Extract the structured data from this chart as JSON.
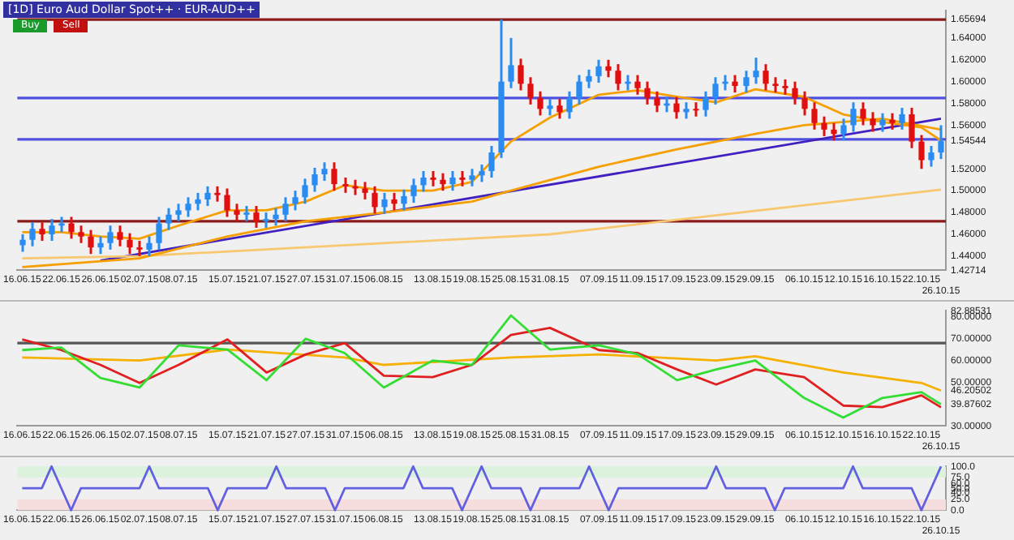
{
  "chart_data": [
    {
      "type": "candlestick",
      "title": "[1D] Euro Aud Dollar Spot++ · EUR-AUD++",
      "annotations": [
        "Buy",
        "Sell"
      ],
      "categories": [
        "16.06.15",
        null,
        null,
        null,
        "22.06.15",
        null,
        null,
        null,
        "26.06.15",
        null,
        null,
        null,
        "02.07.15",
        null,
        null,
        null,
        "08.07.15",
        null,
        null,
        null,
        null,
        "15.07.15",
        null,
        null,
        null,
        "21.07.15",
        null,
        null,
        null,
        "27.07.15",
        null,
        null,
        null,
        "31.07.15",
        null,
        null,
        null,
        "06.08.15",
        null,
        null,
        null,
        null,
        "13.08.15",
        null,
        null,
        null,
        "19.08.15",
        null,
        null,
        null,
        "25.08.15",
        null,
        null,
        null,
        "31.08.15",
        null,
        null,
        null,
        null,
        "07.09.15",
        null,
        null,
        null,
        "11.09.15",
        null,
        null,
        null,
        "17.09.15",
        null,
        null,
        null,
        "23.09.15",
        null,
        null,
        null,
        "29.09.15",
        null,
        null,
        null,
        null,
        "06.10.15",
        null,
        null,
        null,
        "12.10.15",
        null,
        null,
        null,
        "16.10.15",
        null,
        null,
        null,
        "22.10.15",
        null,
        "26.10.15"
      ],
      "ohlc": [
        [
          1.45,
          1.46,
          1.444,
          1.455
        ],
        [
          1.455,
          1.471,
          1.449,
          1.465
        ],
        [
          1.465,
          1.471,
          1.454,
          1.46
        ],
        [
          1.46,
          1.474,
          1.454,
          1.468
        ],
        [
          1.468,
          1.476,
          1.462,
          1.47
        ],
        [
          1.47,
          1.476,
          1.456,
          1.462
        ],
        [
          1.462,
          1.468,
          1.452,
          1.458
        ],
        [
          1.458,
          1.464,
          1.442,
          1.448
        ],
        [
          1.448,
          1.458,
          1.442,
          1.452
        ],
        [
          1.452,
          1.468,
          1.446,
          1.462
        ],
        [
          1.462,
          1.468,
          1.449,
          1.455
        ],
        [
          1.455,
          1.461,
          1.442,
          1.448
        ],
        [
          1.448,
          1.454,
          1.44,
          1.446
        ],
        [
          1.446,
          1.458,
          1.44,
          1.452
        ],
        [
          1.452,
          1.476,
          1.446,
          1.47
        ],
        [
          1.47,
          1.484,
          1.464,
          1.478
        ],
        [
          1.478,
          1.488,
          1.472,
          1.482
        ],
        [
          1.482,
          1.494,
          1.476,
          1.488
        ],
        [
          1.488,
          1.498,
          1.482,
          1.492
        ],
        [
          1.492,
          1.504,
          1.486,
          1.498
        ],
        [
          1.498,
          1.504,
          1.49,
          1.496
        ],
        [
          1.496,
          1.502,
          1.476,
          1.482
        ],
        [
          1.482,
          1.488,
          1.472,
          1.478
        ],
        [
          1.478,
          1.486,
          1.472,
          1.48
        ],
        [
          1.48,
          1.486,
          1.466,
          1.472
        ],
        [
          1.472,
          1.48,
          1.466,
          1.474
        ],
        [
          1.474,
          1.484,
          1.468,
          1.478
        ],
        [
          1.478,
          1.494,
          1.472,
          1.488
        ],
        [
          1.488,
          1.5,
          1.482,
          1.494
        ],
        [
          1.494,
          1.511,
          1.488,
          1.505
        ],
        [
          1.505,
          1.521,
          1.499,
          1.515
        ],
        [
          1.515,
          1.526,
          1.509,
          1.52
        ],
        [
          1.52,
          1.526,
          1.5,
          1.506
        ],
        [
          1.506,
          1.512,
          1.498,
          1.504
        ],
        [
          1.504,
          1.51,
          1.496,
          1.502
        ],
        [
          1.502,
          1.508,
          1.492,
          1.498
        ],
        [
          1.498,
          1.504,
          1.479,
          1.485
        ],
        [
          1.485,
          1.498,
          1.479,
          1.492
        ],
        [
          1.492,
          1.498,
          1.482,
          1.488
        ],
        [
          1.488,
          1.501,
          1.482,
          1.495
        ],
        [
          1.495,
          1.511,
          1.489,
          1.505
        ],
        [
          1.505,
          1.518,
          1.499,
          1.512
        ],
        [
          1.512,
          1.518,
          1.504,
          1.51
        ],
        [
          1.51,
          1.516,
          1.5,
          1.506
        ],
        [
          1.506,
          1.518,
          1.5,
          1.512
        ],
        [
          1.512,
          1.518,
          1.504,
          1.51
        ],
        [
          1.51,
          1.52,
          1.504,
          1.514
        ],
        [
          1.514,
          1.524,
          1.508,
          1.518
        ],
        [
          1.518,
          1.541,
          1.512,
          1.535
        ],
        [
          1.535,
          1.657,
          1.53,
          1.6
        ],
        [
          1.6,
          1.64,
          1.594,
          1.615
        ],
        [
          1.615,
          1.621,
          1.592,
          1.598
        ],
        [
          1.598,
          1.604,
          1.579,
          1.585
        ],
        [
          1.585,
          1.591,
          1.569,
          1.575
        ],
        [
          1.575,
          1.584,
          1.569,
          1.578
        ],
        [
          1.578,
          1.584,
          1.566,
          1.572
        ],
        [
          1.572,
          1.591,
          1.566,
          1.585
        ],
        [
          1.585,
          1.606,
          1.579,
          1.6
        ],
        [
          1.6,
          1.611,
          1.594,
          1.605
        ],
        [
          1.605,
          1.62,
          1.599,
          1.614
        ],
        [
          1.614,
          1.62,
          1.604,
          1.61
        ],
        [
          1.61,
          1.616,
          1.592,
          1.598
        ],
        [
          1.598,
          1.606,
          1.592,
          1.6
        ],
        [
          1.6,
          1.606,
          1.588,
          1.594
        ],
        [
          1.594,
          1.6,
          1.579,
          1.585
        ],
        [
          1.585,
          1.591,
          1.572,
          1.578
        ],
        [
          1.578,
          1.586,
          1.572,
          1.58
        ],
        [
          1.58,
          1.586,
          1.566,
          1.572
        ],
        [
          1.572,
          1.581,
          1.566,
          1.575
        ],
        [
          1.575,
          1.581,
          1.568,
          1.574
        ],
        [
          1.574,
          1.591,
          1.568,
          1.585
        ],
        [
          1.585,
          1.604,
          1.579,
          1.598
        ],
        [
          1.598,
          1.606,
          1.592,
          1.6
        ],
        [
          1.6,
          1.606,
          1.59,
          1.596
        ],
        [
          1.596,
          1.61,
          1.59,
          1.604
        ],
        [
          1.604,
          1.622,
          1.598,
          1.61
        ],
        [
          1.61,
          1.616,
          1.592,
          1.598
        ],
        [
          1.598,
          1.604,
          1.59,
          1.596
        ],
        [
          1.596,
          1.602,
          1.588,
          1.594
        ],
        [
          1.594,
          1.6,
          1.579,
          1.585
        ],
        [
          1.585,
          1.591,
          1.569,
          1.575
        ],
        [
          1.575,
          1.581,
          1.556,
          1.562
        ],
        [
          1.562,
          1.568,
          1.55,
          1.556
        ],
        [
          1.556,
          1.562,
          1.546,
          1.552
        ],
        [
          1.552,
          1.566,
          1.546,
          1.56
        ],
        [
          1.56,
          1.581,
          1.554,
          1.575
        ],
        [
          1.575,
          1.581,
          1.56,
          1.566
        ],
        [
          1.566,
          1.572,
          1.554,
          1.56
        ],
        [
          1.56,
          1.571,
          1.554,
          1.565
        ],
        [
          1.565,
          1.571,
          1.556,
          1.562
        ],
        [
          1.562,
          1.576,
          1.556,
          1.57
        ],
        [
          1.57,
          1.576,
          1.539,
          1.545
        ],
        [
          1.545,
          1.551,
          1.52,
          1.528
        ],
        [
          1.528,
          1.541,
          1.522,
          1.535
        ],
        [
          1.535,
          1.56,
          1.529,
          1.5454
        ]
      ],
      "series": [
        {
          "type": "line",
          "color": "#f5a000",
          "x": [
            "16.06.15",
            "22.06.15",
            "26.06.15",
            "02.07.15",
            "08.07.15",
            "15.07.15",
            "21.07.15",
            "27.07.15",
            "31.07.15",
            "06.08.15",
            "13.08.15",
            "19.08.15",
            "25.08.15",
            "31.08.15",
            "07.09.15",
            "11.09.15",
            "17.09.15",
            "23.09.15",
            "29.09.15",
            "06.10.15",
            "12.10.15",
            "16.10.15",
            "22.10.15",
            "26.10.15"
          ],
          "values": [
            1.462,
            1.462,
            1.458,
            1.456,
            1.468,
            1.482,
            1.482,
            1.49,
            1.505,
            1.5,
            1.5,
            1.508,
            1.545,
            1.567,
            1.588,
            1.592,
            1.586,
            1.581,
            1.593,
            1.586,
            1.57,
            1.563,
            1.558,
            1.546
          ]
        },
        {
          "type": "line",
          "color": "#f5a000",
          "x": [
            "16.06.15",
            "02.07.15",
            "15.07.15",
            "27.07.15",
            "06.08.15",
            "19.08.15",
            "25.08.15",
            "07.09.15",
            "17.09.15",
            "29.09.15",
            "06.10.15",
            "16.10.15",
            "26.10.15"
          ],
          "values": [
            1.43,
            1.438,
            1.458,
            1.472,
            1.48,
            1.49,
            1.5,
            1.522,
            1.538,
            1.552,
            1.56,
            1.566,
            1.556
          ]
        },
        {
          "type": "line",
          "color": "#f8c870",
          "x": [
            "16.06.15",
            "02.07.15",
            "31.08.15",
            "26.10.15"
          ],
          "values": [
            1.438,
            1.44,
            1.46,
            1.501
          ]
        },
        {
          "type": "line",
          "color": "#4020c0",
          "x": [
            "26.06.15",
            "26.10.15"
          ],
          "values": [
            1.436,
            1.566
          ]
        }
      ],
      "ylim": [
        1.42714,
        1.665
      ],
      "yticks": [
        {
          "value": 1.42714,
          "label": "1.42714"
        },
        {
          "value": 1.44,
          "label": "1.44000"
        },
        {
          "value": 1.46,
          "label": "1.46000"
        },
        {
          "value": 1.48,
          "label": "1.48000"
        },
        {
          "value": 1.5,
          "label": "1.50000"
        },
        {
          "value": 1.52,
          "label": "1.52000"
        },
        {
          "value": 1.54544,
          "label": "1.54544"
        },
        {
          "value": 1.56,
          "label": "1.56000"
        },
        {
          "value": 1.58,
          "label": "1.58000"
        },
        {
          "value": 1.6,
          "label": "1.60000"
        },
        {
          "value": 1.62,
          "label": "1.62000"
        },
        {
          "value": 1.64,
          "label": "1.64000"
        },
        {
          "value": 1.65694,
          "label": "1.65694"
        }
      ],
      "ref_lines": [
        {
          "axis": "y",
          "value": 1.65694,
          "color": "#8b1a1a"
        },
        {
          "axis": "y",
          "value": 1.472,
          "color": "#8b1a1a"
        },
        {
          "axis": "y",
          "value": 1.585,
          "color": "#5050e0"
        },
        {
          "axis": "y",
          "value": 1.547,
          "color": "#5050e0"
        }
      ]
    },
    {
      "type": "line",
      "categories": [
        "16.06.15",
        null,
        null,
        null,
        "22.06.15",
        null,
        null,
        null,
        "26.06.15",
        null,
        null,
        null,
        "02.07.15",
        null,
        null,
        null,
        "08.07.15",
        null,
        null,
        null,
        null,
        "15.07.15",
        null,
        null,
        null,
        "21.07.15",
        null,
        null,
        null,
        "27.07.15",
        null,
        null,
        null,
        "31.07.15",
        null,
        null,
        null,
        "06.08.15",
        null,
        null,
        null,
        null,
        "13.08.15",
        null,
        null,
        null,
        "19.08.15",
        null,
        null,
        null,
        "25.08.15",
        null,
        null,
        null,
        "31.08.15",
        null,
        null,
        null,
        null,
        "07.09.15",
        null,
        null,
        null,
        "11.09.15",
        null,
        null,
        null,
        "17.09.15",
        null,
        null,
        null,
        "23.09.15",
        null,
        null,
        null,
        "29.09.15",
        null,
        null,
        null,
        null,
        "06.10.15",
        null,
        null,
        null,
        "12.10.15",
        null,
        null,
        null,
        "16.10.15",
        null,
        null,
        null,
        "22.10.15",
        null,
        "26.10.15"
      ],
      "series": [
        {
          "color": "#33dd33",
          "x": [
            "16.06.15",
            "22.06.15",
            "26.06.15",
            "02.07.15",
            "08.07.15",
            "15.07.15",
            "21.07.15",
            "27.07.15",
            "31.07.15",
            "06.08.15",
            "13.08.15",
            "19.08.15",
            "25.08.15",
            "31.08.15",
            "07.09.15",
            "11.09.15",
            "17.09.15",
            "23.09.15",
            "29.09.15",
            "06.10.15",
            "12.10.15",
            "16.10.15",
            "22.10.15",
            "26.10.15"
          ],
          "values": [
            64.8,
            66,
            52,
            47.6,
            67,
            65,
            51,
            70,
            63.4,
            47.6,
            60,
            58,
            80.7,
            65,
            67,
            62.8,
            51,
            55.9,
            60,
            42.8,
            33.8,
            42.8,
            45.5,
            39.9
          ]
        },
        {
          "color": "#e02020",
          "x": [
            "16.06.15",
            "22.06.15",
            "26.06.15",
            "02.07.15",
            "08.07.15",
            "15.07.15",
            "21.07.15",
            "27.07.15",
            "31.07.15",
            "06.08.15",
            "13.08.15",
            "19.08.15",
            "25.08.15",
            "31.08.15",
            "07.09.15",
            "11.09.15",
            "17.09.15",
            "23.09.15",
            "29.09.15",
            "06.10.15",
            "12.10.15",
            "16.10.15",
            "22.10.15",
            "26.10.15"
          ],
          "values": [
            69.7,
            64.8,
            58,
            49.7,
            58,
            69.7,
            54.5,
            62.8,
            68,
            53,
            52.4,
            58,
            71.7,
            75,
            64.8,
            63.4,
            55.9,
            49,
            55.9,
            52.4,
            39.3,
            38.6,
            44,
            38.5
          ]
        },
        {
          "color": "#f5b000",
          "x": [
            "16.06.15",
            "02.07.15",
            "15.07.15",
            "31.07.15",
            "06.08.15",
            "25.08.15",
            "07.09.15",
            "23.09.15",
            "29.09.15",
            "12.10.15",
            "22.10.15",
            "26.10.15"
          ],
          "values": [
            61.4,
            60,
            65,
            61.4,
            58,
            61.4,
            62.8,
            60,
            62,
            54.5,
            49.7,
            46.2
          ]
        }
      ],
      "ylim": [
        30,
        82.88531
      ],
      "yticks": [
        {
          "value": 30,
          "label": "30.00000"
        },
        {
          "value": 39.87602,
          "label": "39.87602"
        },
        {
          "value": 46.20502,
          "label": "46.20502"
        },
        {
          "value": 50,
          "label": "50.00000"
        },
        {
          "value": 60,
          "label": "60.00000"
        },
        {
          "value": 70,
          "label": "70.00000"
        },
        {
          "value": 80,
          "label": "80.00000"
        },
        {
          "value": 82.88531,
          "label": "82.88531"
        }
      ],
      "ref_lines": [
        {
          "axis": "y",
          "value": 68,
          "color": "#555555"
        }
      ]
    },
    {
      "type": "line",
      "categories": [
        "16.06.15",
        null,
        null,
        null,
        "22.06.15",
        null,
        null,
        null,
        "26.06.15",
        null,
        null,
        null,
        "02.07.15",
        null,
        null,
        null,
        "08.07.15",
        null,
        null,
        null,
        null,
        "15.07.15",
        null,
        null,
        null,
        "21.07.15",
        null,
        null,
        null,
        "27.07.15",
        null,
        null,
        null,
        "31.07.15",
        null,
        null,
        null,
        "06.08.15",
        null,
        null,
        null,
        null,
        "13.08.15",
        null,
        null,
        null,
        "19.08.15",
        null,
        null,
        null,
        "25.08.15",
        null,
        null,
        null,
        "31.08.15",
        null,
        null,
        null,
        null,
        "07.09.15",
        null,
        null,
        null,
        "11.09.15",
        null,
        null,
        null,
        "17.09.15",
        null,
        null,
        null,
        "23.09.15",
        null,
        null,
        null,
        "29.09.15",
        null,
        null,
        null,
        null,
        "06.10.15",
        null,
        null,
        null,
        "12.10.15",
        null,
        null,
        null,
        "16.10.15",
        null,
        null,
        null,
        "22.10.15",
        null,
        "26.10.15"
      ],
      "color": "#6060e0",
      "values": [
        50,
        50,
        50,
        100,
        50,
        0,
        50,
        50,
        50,
        50,
        50,
        50,
        50,
        100,
        50,
        50,
        50,
        50,
        50,
        50,
        0,
        50,
        50,
        50,
        50,
        50,
        100,
        50,
        50,
        50,
        50,
        50,
        0,
        50,
        50,
        50,
        50,
        50,
        50,
        50,
        100,
        50,
        50,
        50,
        50,
        0,
        50,
        100,
        50,
        50,
        50,
        50,
        0,
        50,
        50,
        50,
        50,
        50,
        100,
        50,
        0,
        50,
        50,
        50,
        50,
        50,
        50,
        50,
        50,
        50,
        50,
        100,
        50,
        50,
        50,
        50,
        50,
        0,
        50,
        50,
        50,
        50,
        50,
        50,
        50,
        100,
        50,
        50,
        50,
        50,
        50,
        50,
        0,
        50,
        100
      ],
      "ylim": [
        0,
        100
      ],
      "yticks": [
        {
          "value": 0,
          "label": "0.0"
        },
        {
          "value": 25,
          "label": "25.0"
        },
        {
          "value": 40,
          "label": "40.0"
        },
        {
          "value": 50,
          "label": "50.0"
        },
        {
          "value": 60,
          "label": "60.0"
        },
        {
          "value": 75,
          "label": "75.0"
        },
        {
          "value": 100,
          "label": "100.0"
        }
      ],
      "bands": [
        {
          "axis": "y",
          "from": 75,
          "to": 100,
          "color": "#dcf2dc"
        },
        {
          "axis": "y",
          "from": 0,
          "to": 25,
          "color": "#f7dede"
        }
      ]
    }
  ]
}
